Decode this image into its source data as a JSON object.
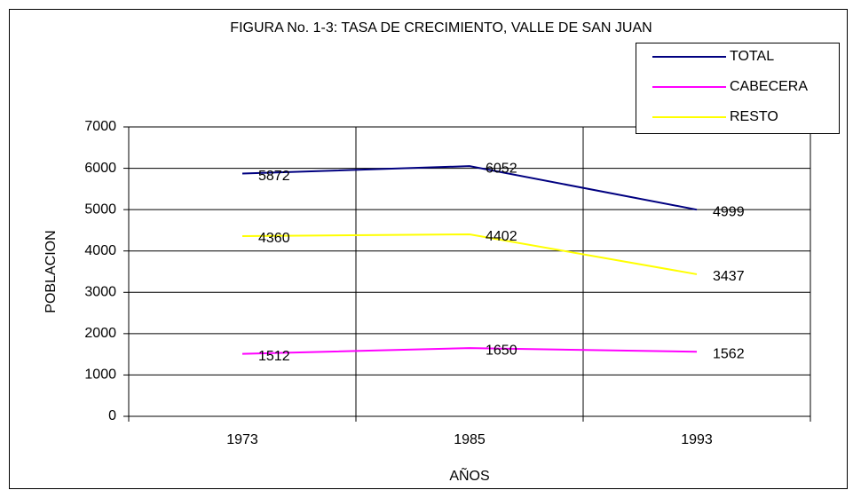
{
  "chart_data": {
    "type": "line",
    "title": "FIGURA No. 1-3:  TASA DE CRECIMIENTO, VALLE DE SAN JUAN",
    "x_label": "AÑOS",
    "y_label": "POBLACION",
    "categories": [
      "1973",
      "1985",
      "1993"
    ],
    "series": [
      {
        "name": "TOTAL",
        "color": "#000080",
        "values": [
          5872,
          6052,
          4999
        ]
      },
      {
        "name": "CABECERA",
        "color": "#ff00ff",
        "values": [
          1512,
          1650,
          1562
        ]
      },
      {
        "name": "RESTO",
        "color": "#ffff00",
        "values": [
          4360,
          4402,
          3437
        ]
      }
    ],
    "ylim": [
      0,
      7000
    ],
    "yticks": [
      0,
      1000,
      2000,
      3000,
      4000,
      5000,
      6000,
      7000
    ],
    "grid": true,
    "legend": "top-right",
    "data_labels": true
  }
}
